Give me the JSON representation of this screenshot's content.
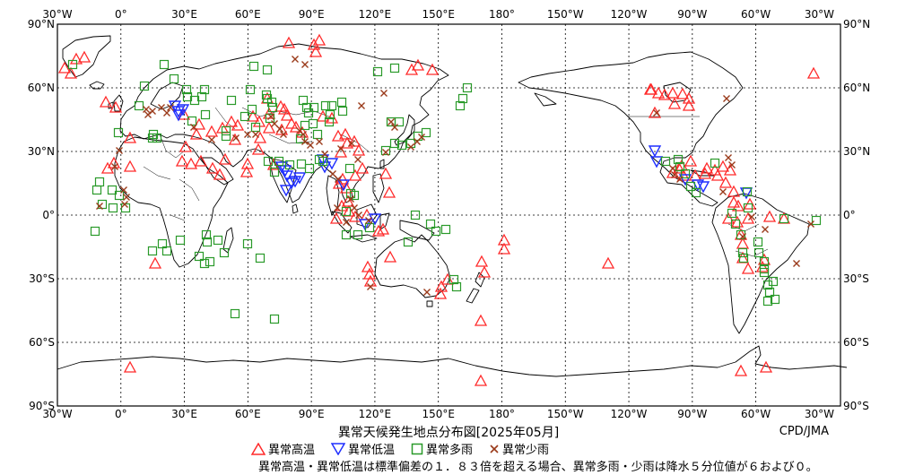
{
  "map": {
    "title": "異常天候発生地点分布図[2025年05月]",
    "credit": "CPD/JMA",
    "lon_labels": [
      "30°W",
      "0°",
      "30°E",
      "60°E",
      "90°E",
      "120°E",
      "150°E",
      "180°",
      "150°W",
      "120°W",
      "90°W",
      "60°W",
      "30°W"
    ],
    "lat_labels": [
      "90°N",
      "60°N",
      "30°N",
      "0°",
      "30°S",
      "60°S",
      "90°S"
    ],
    "colors": {
      "high": "#ff2a2a",
      "low": "#1f2fff",
      "wet": "#2a9a2a",
      "dry": "#9a3a1a",
      "coast": "#000000",
      "grid": "#000000"
    }
  },
  "legend": {
    "high": "異常高温",
    "low": "異常低温",
    "wet": "異常多雨",
    "dry": "異常少雨"
  },
  "note": "異常高温・異常低温は標準偏差の１．８３倍を超える場合、異常多雨・少雨は降水５分位値が６および０。"
}
